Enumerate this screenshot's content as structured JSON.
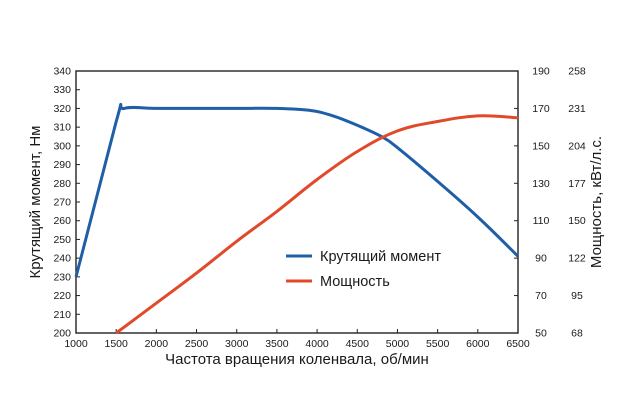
{
  "chart_data": {
    "type": "line",
    "xlabel": "Частота вращения коленвала, об/мин",
    "ylabel_left": "Крутящий момент, Нм",
    "ylabel_right": "Мощность, кВт/л.с.",
    "x_ticks": [
      "1000",
      "1500",
      "2000",
      "2500",
      "3000",
      "3500",
      "4000",
      "4500",
      "5000",
      "5500",
      "6000",
      "6500"
    ],
    "xlim": [
      1000,
      6500
    ],
    "ylim_left": [
      200,
      340
    ],
    "y_left_ticks": [
      "200",
      "210",
      "220",
      "230",
      "240",
      "250",
      "260",
      "270",
      "280",
      "290",
      "300",
      "310",
      "320",
      "330",
      "340"
    ],
    "ylim_right": [
      50,
      190
    ],
    "y_right_kw_ticks": [
      "50",
      "70",
      "90",
      "110",
      "130",
      "150",
      "170",
      "190"
    ],
    "y_right_hp_ticks": [
      "68",
      "95",
      "122",
      "150",
      "177",
      "204",
      "231",
      "258"
    ],
    "grid": false,
    "legend_position": "center-right",
    "series": [
      {
        "name": "Крутящий момент",
        "axis": "left",
        "color": "#1f5fa8",
        "x": [
          1000,
          1500,
          1600,
          2000,
          2500,
          3000,
          3500,
          3900,
          4200,
          4500,
          4800,
          5000,
          5500,
          6000,
          6500
        ],
        "values": [
          230,
          313,
          320,
          320,
          320,
          320,
          320,
          319,
          316,
          311,
          305,
          299,
          281,
          262,
          241
        ]
      },
      {
        "name": "Мощность",
        "axis": "right",
        "color": "#e04a2a",
        "x": [
          1500,
          2000,
          2500,
          3000,
          3500,
          4000,
          4500,
          5000,
          5500,
          6000,
          6500
        ],
        "values": [
          50,
          66,
          82,
          99,
          115,
          132,
          147,
          158,
          163,
          166,
          165
        ]
      }
    ]
  }
}
